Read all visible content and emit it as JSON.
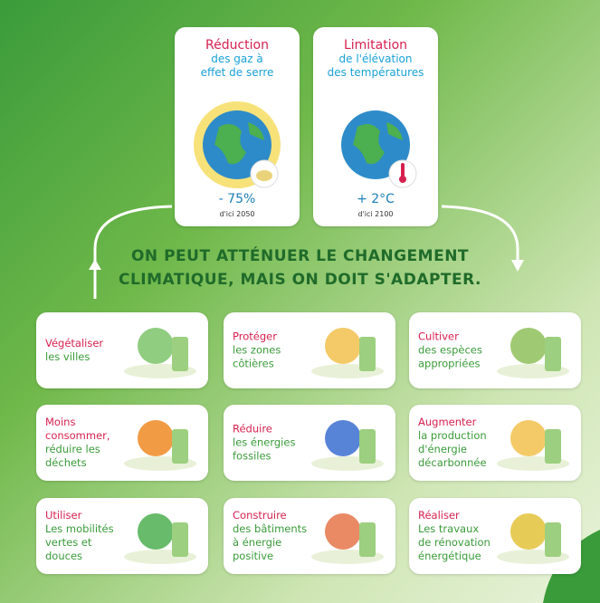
{
  "goals": [
    {
      "title": "Réduction",
      "subtitle": [
        "des gaz à",
        "effet de serre"
      ],
      "value": "- 75%",
      "deadline": "d'ici 2050"
    },
    {
      "title": "Limitation",
      "subtitle": [
        "de l'élévation",
        "des températures"
      ],
      "value": "+ 2°C",
      "deadline": "d'ici 2100"
    }
  ],
  "headline": [
    "ON PEUT ATTÉNUER LE CHANGEMENT",
    "CLIMATIQUE, MAIS ON DOIT S'ADAPTER."
  ],
  "actions": [
    {
      "verb": [
        "Végétaliser"
      ],
      "object": [
        "les villes"
      ]
    },
    {
      "verb": [
        "Protéger"
      ],
      "object": [
        "les zones",
        "côtières"
      ]
    },
    {
      "verb": [
        "Cultiver"
      ],
      "object": [
        "des espèces",
        "appropriées"
      ]
    },
    {
      "verb": [
        "Moins",
        "consommer,"
      ],
      "object": [
        "réduire les",
        "déchets"
      ]
    },
    {
      "verb": [
        "Réduire"
      ],
      "object": [
        "les énergies",
        "fossiles"
      ]
    },
    {
      "verb": [
        "Augmenter"
      ],
      "object": [
        "la production",
        "d'énergie",
        "décarbonnée"
      ]
    },
    {
      "verb": [
        "Utiliser"
      ],
      "object": [
        "Les mobilités",
        "vertes et",
        "douces"
      ]
    },
    {
      "verb": [
        "Construire"
      ],
      "object": [
        "des bâtiments",
        "à énergie",
        "positive"
      ]
    },
    {
      "verb": [
        "Réaliser"
      ],
      "object": [
        "Les travaux",
        "de rénovation",
        "énergétique"
      ]
    }
  ]
}
